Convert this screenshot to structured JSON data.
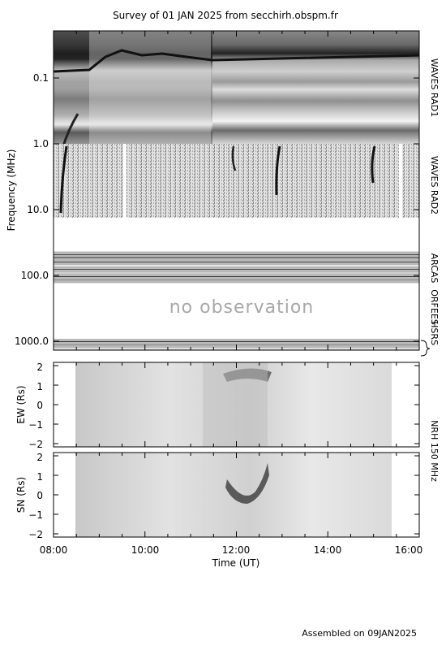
{
  "title": "Survey of 01 JAN 2025 from secchirh.obspm.fr",
  "footer": "Assembled on 09JAN2025",
  "chart_data": [
    {
      "type": "heatmap",
      "name": "dynamic-spectrum",
      "ylabel": "Frequency (MHz)",
      "ytick_labels": [
        "0.1",
        "1.0",
        "10.0",
        "100.0",
        "1000.0"
      ],
      "ytick_values": [
        0.1,
        1.0,
        10.0,
        100.0,
        1000.0
      ],
      "yscale": "log",
      "y_inverted": true,
      "xlim": [
        "08:00",
        "16:00"
      ],
      "instruments": [
        "WAVES RAD1",
        "WAVES RAD2",
        "ARCAS",
        "ORFEES",
        "HSRS"
      ],
      "no_data_text": "no observation"
    },
    {
      "type": "heatmap",
      "name": "nrh-ew",
      "ylabel": "EW (Rs)",
      "ytick_labels": [
        "2",
        "1",
        "0",
        "−1",
        "−2"
      ],
      "ylim": [
        -2,
        2
      ],
      "xlim": [
        "08:00",
        "16:00"
      ],
      "instrument": "NRH 150 MHz"
    },
    {
      "type": "heatmap",
      "name": "nrh-sn",
      "ylabel": "SN (Rs)",
      "ytick_labels": [
        "2",
        "1",
        "0",
        "−1",
        "−2"
      ],
      "ylim": [
        -2,
        2
      ],
      "xlim": [
        "08:00",
        "16:00"
      ],
      "xlabel": "Time (UT)",
      "xtick_labels": [
        "08:00",
        "10:00",
        "12:00",
        "14:00",
        "16:00"
      ],
      "xtick_values": [
        8,
        10,
        12,
        14,
        16
      ]
    }
  ]
}
